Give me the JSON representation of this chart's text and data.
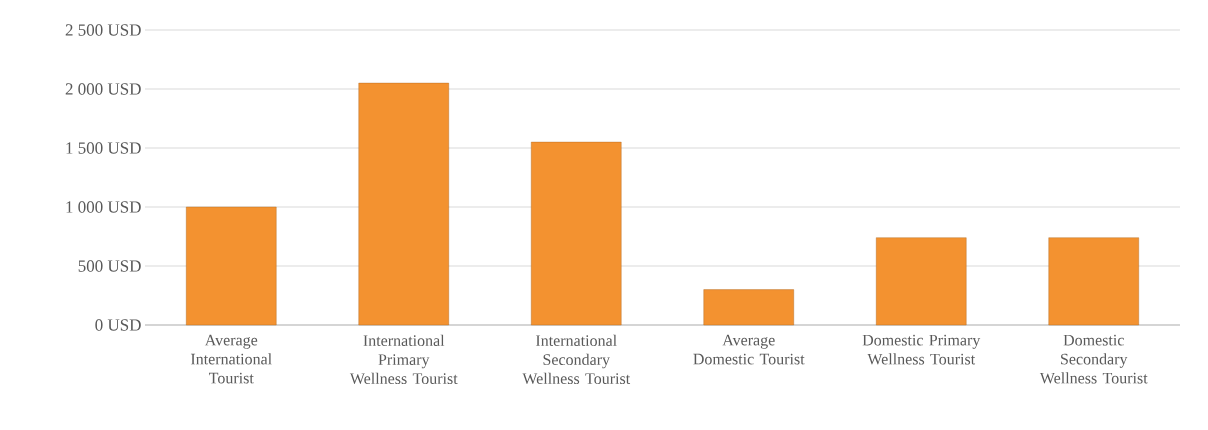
{
  "chart_data": {
    "type": "bar",
    "categories": [
      "Average International Tourist",
      "International Primary Wellness Tourist",
      "International Secondary Wellness Tourist",
      "Average Domestic Tourist",
      "Domestic Primary Wellness Tourist",
      "Domestic Secondary Wellness Tourist"
    ],
    "values": [
      1000,
      2050,
      1550,
      300,
      740,
      740
    ],
    "color": "#f39230",
    "ylim": [
      0,
      2500
    ],
    "yticks": [
      {
        "value": 0,
        "label": "0 USD"
      },
      {
        "value": 500,
        "label": "500 USD"
      },
      {
        "value": 1000,
        "label": "1 000 USD"
      },
      {
        "value": 1500,
        "label": "1 500 USD"
      },
      {
        "value": 2000,
        "label": "2 000 USD"
      },
      {
        "value": 2500,
        "label": "2 500 USD"
      }
    ],
    "grid": "y"
  }
}
